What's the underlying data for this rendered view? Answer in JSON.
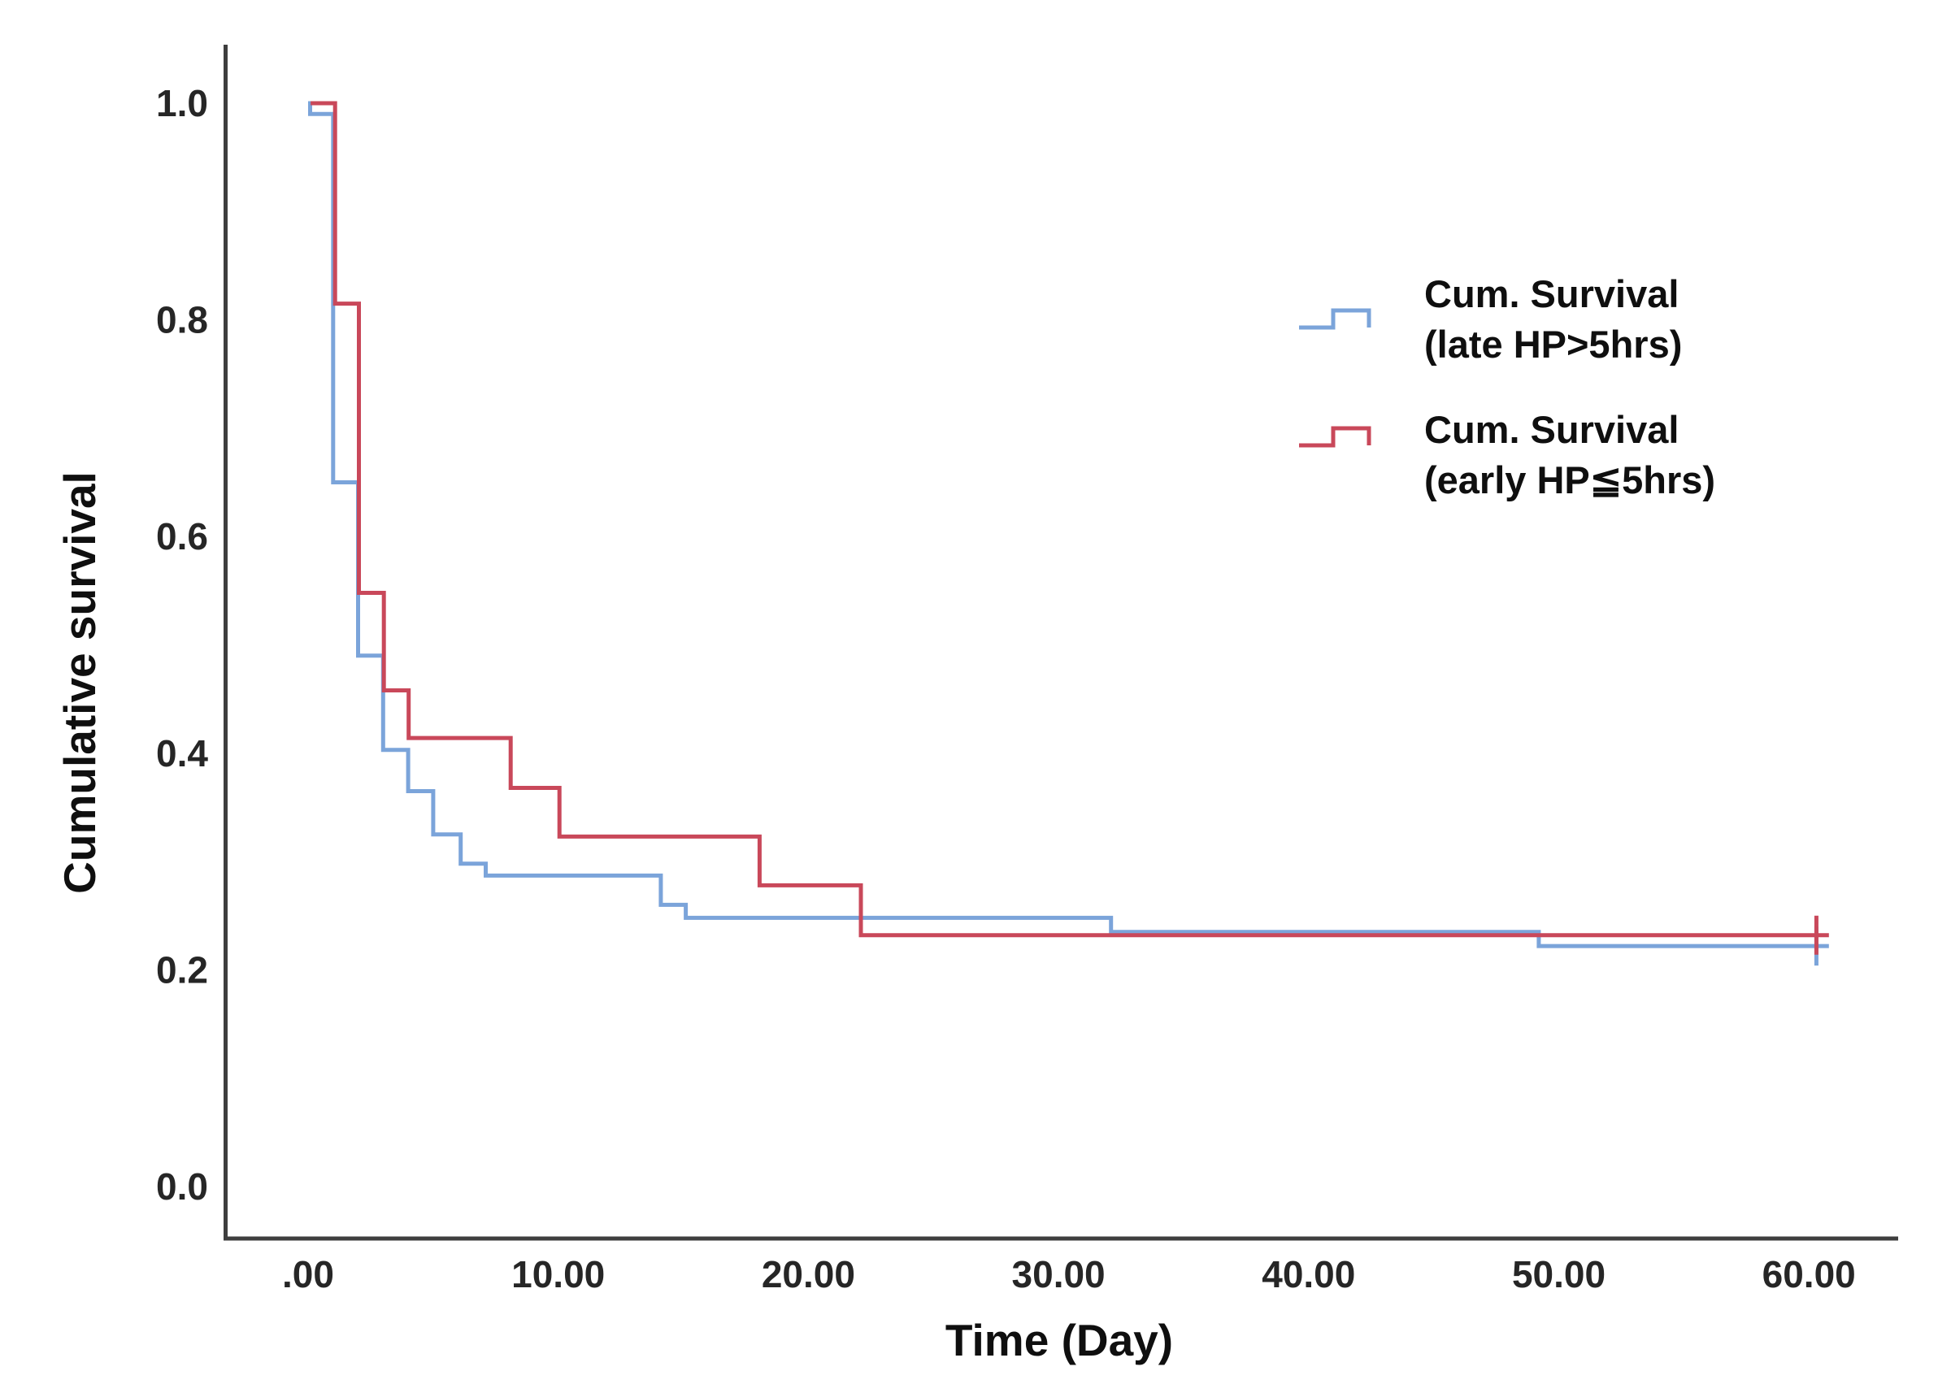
{
  "chart_data": {
    "type": "line",
    "chart_style": "kaplan-meier-step",
    "title": "",
    "xlabel": "Time (Day)",
    "ylabel": "Cumulative survival",
    "grid": false,
    "legend_position": "upper-right-inside",
    "x_axis": {
      "min": 0,
      "max": 60,
      "tick_values": [
        0,
        10,
        20,
        30,
        40,
        50,
        60
      ],
      "tick_labels": [
        ".00",
        "10.00",
        "20.00",
        "30.00",
        "40.00",
        "50.00",
        "60.00"
      ]
    },
    "y_axis": {
      "min": 0.0,
      "max": 1.0,
      "tick_values": [
        1.0,
        0.8,
        0.6,
        0.4,
        0.2,
        0.0
      ],
      "tick_labels": [
        "1.0",
        "0.8",
        "0.6",
        "0.4",
        "0.2",
        "0.0"
      ]
    },
    "series": [
      {
        "key": "late-hp",
        "name": "Cum. Survival (late HP>5hrs)",
        "legend_lines": [
          "Cum. Survival",
          "(late HP>5hrs)"
        ],
        "color": "#7BA4DA",
        "start_time": 0,
        "start_value": 1.0,
        "steps": [
          [
            0.08,
            0.99
          ],
          [
            1.0,
            0.65
          ],
          [
            2.0,
            0.49
          ],
          [
            3.0,
            0.403
          ],
          [
            4.0,
            0.365
          ],
          [
            5.0,
            0.325
          ],
          [
            6.1,
            0.298
          ],
          [
            7.1,
            0.287
          ],
          [
            14.1,
            0.26
          ],
          [
            15.1,
            0.248
          ],
          [
            32.1,
            0.235
          ],
          [
            49.2,
            0.222
          ]
        ],
        "end_time": 60.8,
        "censored": [
          [
            60.3,
            0.222
          ]
        ]
      },
      {
        "key": "early-hp",
        "name": "Cum. Survival (early HP≦5hrs)",
        "legend_lines": [
          "Cum. Survival",
          "(early HP≦5hrs)"
        ],
        "color": "#C9485A",
        "start_time": 0.1,
        "start_value": 1.0,
        "steps": [
          [
            1.08,
            0.815
          ],
          [
            2.03,
            0.548
          ],
          [
            3.03,
            0.458
          ],
          [
            4.02,
            0.414
          ],
          [
            8.1,
            0.368
          ],
          [
            10.05,
            0.323
          ],
          [
            18.05,
            0.278
          ],
          [
            22.1,
            0.232
          ]
        ],
        "end_time": 60.8,
        "censored": [
          [
            60.3,
            0.232
          ]
        ]
      }
    ]
  }
}
